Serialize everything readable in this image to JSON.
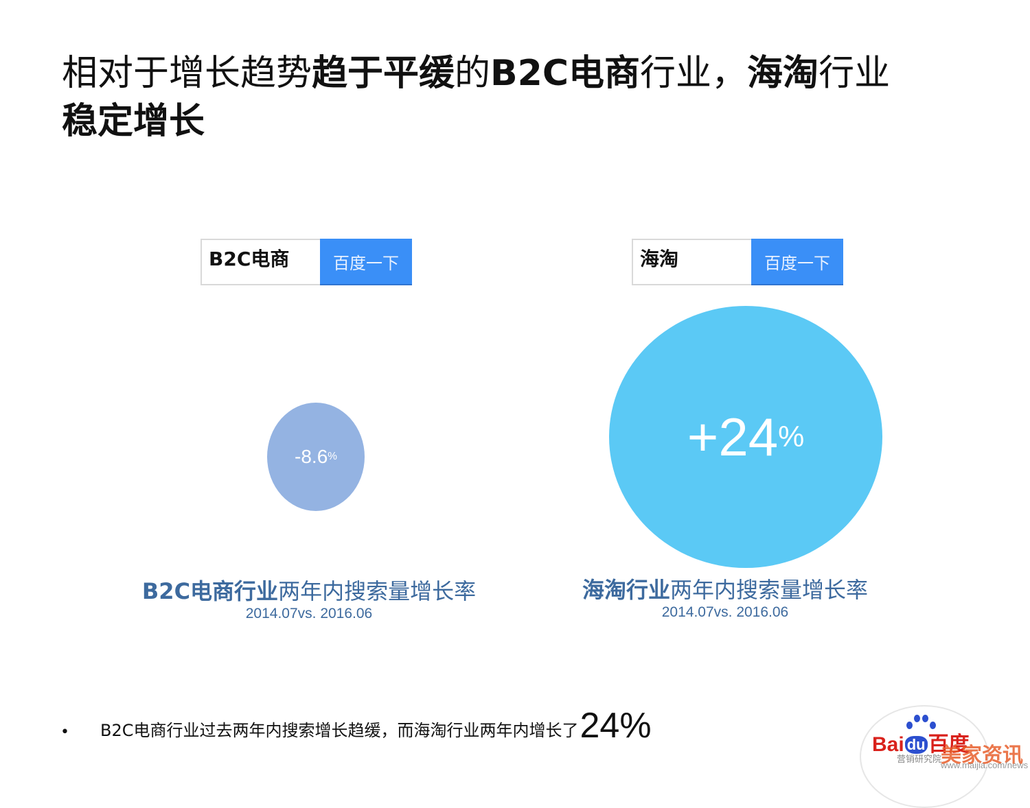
{
  "title": {
    "line1_a": "相对于增长趋势",
    "line1_b": "趋于平缓",
    "line1_c": "的",
    "line1_d": "B2C电商",
    "line1_e": "行业，",
    "line1_f": "海淘",
    "line1_g": "行业",
    "line2": "稳定增长"
  },
  "search_left": {
    "query": "B2C电商",
    "button": "百度一下"
  },
  "search_right": {
    "query": "海淘",
    "button": "百度一下"
  },
  "bubbles": {
    "b2c": {
      "value": "-8.6",
      "unit": "%",
      "color": "#94b3e2"
    },
    "haitao": {
      "value": "+24",
      "unit": "%",
      "color": "#5bc9f5"
    }
  },
  "captions": {
    "b2c": {
      "bold": "B2C电商行业",
      "rest": "两年内搜索量增长率",
      "period": "2014.07vs. 2016.06"
    },
    "haitao": {
      "bold": "海淘行业",
      "rest": "两年内搜索量增长率",
      "period": "2014.07vs. 2016.06"
    }
  },
  "bullet": {
    "marker": "•",
    "text": "B2C电商行业过去两年内搜索增长趋缓，而海淘行业两年内增长了",
    "highlight": "24%"
  },
  "logo": {
    "brand_a": "Bai",
    "brand_du": "du",
    "brand_b": "百度",
    "subtitle": "营销研究院",
    "watermark": "美家资讯",
    "watermark_url": "www.maijia.com/news"
  }
}
